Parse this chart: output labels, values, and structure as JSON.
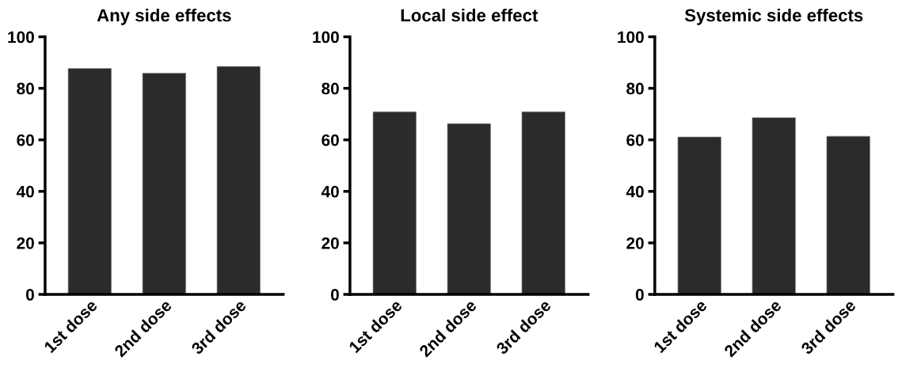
{
  "chart_data": [
    {
      "type": "bar",
      "title": "Any side effects",
      "categories": [
        "1st dose",
        "2nd dose",
        "3rd dose"
      ],
      "values": [
        87.7,
        85.9,
        88.5
      ],
      "color": "#2b2b2b",
      "ylim": [
        0,
        100
      ],
      "yticks": [
        0,
        20,
        40,
        60,
        80,
        100
      ],
      "grid": false
    },
    {
      "type": "bar",
      "title": "Local side effect",
      "categories": [
        "1st dose",
        "2nd dose",
        "3rd dose"
      ],
      "values": [
        70.9,
        66.3,
        70.9
      ],
      "color": "#2b2b2b",
      "ylim": [
        0,
        100
      ],
      "yticks": [
        0,
        20,
        40,
        60,
        80,
        100
      ],
      "grid": false
    },
    {
      "type": "bar",
      "title": "Systemic side effects",
      "categories": [
        "1st dose",
        "2nd dose",
        "3rd dose"
      ],
      "values": [
        61.1,
        68.6,
        61.4
      ],
      "color": "#2b2b2b",
      "ylim": [
        0,
        100
      ],
      "yticks": [
        0,
        20,
        40,
        60,
        80,
        100
      ],
      "grid": false
    }
  ]
}
